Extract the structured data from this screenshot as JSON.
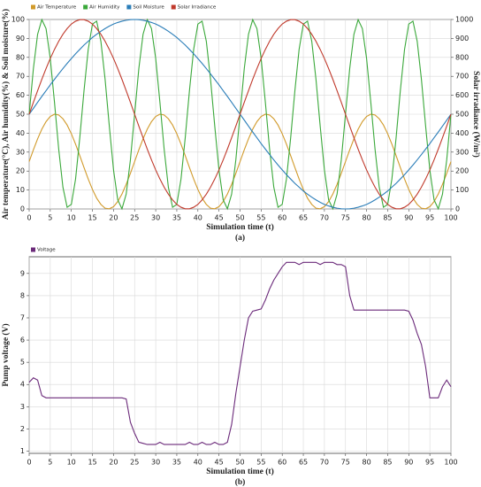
{
  "chart_data": [
    {
      "type": "line",
      "panel_label": "(a)",
      "x_label": "Simulation time (t)",
      "y_label": "Air temperature(°C), Air humidity(%) & Soil moisture(%)",
      "y2_label": "Solar irradiance (W/m²)",
      "legend": "top-left",
      "grid": true,
      "xlim": [
        0,
        100
      ],
      "xticks": [
        0,
        5,
        10,
        15,
        20,
        25,
        30,
        35,
        40,
        45,
        50,
        55,
        60,
        65,
        70,
        75,
        80,
        85,
        90,
        95,
        100
      ],
      "ylim": [
        0,
        100
      ],
      "yticks": [
        0,
        10,
        20,
        30,
        40,
        50,
        60,
        70,
        80,
        90,
        100
      ],
      "y2lim": [
        0,
        1000
      ],
      "y2ticks": [
        0,
        100,
        200,
        300,
        400,
        500,
        600,
        700,
        800,
        900,
        1000
      ],
      "x": [
        0,
        1,
        2,
        3,
        4,
        5,
        6,
        7,
        8,
        9,
        10,
        11,
        12,
        13,
        14,
        15,
        16,
        17,
        18,
        19,
        20,
        21,
        22,
        23,
        24,
        25,
        26,
        27,
        28,
        29,
        30,
        31,
        32,
        33,
        34,
        35,
        36,
        37,
        38,
        39,
        40,
        41,
        42,
        43,
        44,
        45,
        46,
        47,
        48,
        49,
        50,
        51,
        52,
        53,
        54,
        55,
        56,
        57,
        58,
        59,
        60,
        61,
        62,
        63,
        64,
        65,
        66,
        67,
        68,
        69,
        70,
        71,
        72,
        73,
        74,
        75,
        76,
        77,
        78,
        79,
        80,
        81,
        82,
        83,
        84,
        85,
        86,
        87,
        88,
        89,
        90,
        91,
        92,
        93,
        94,
        95,
        96,
        97,
        98,
        99,
        100
      ],
      "series": [
        {
          "name": "Air Temperature",
          "color": "#d19a2a",
          "values": [
            25,
            31.2,
            37.0,
            42.1,
            46.1,
            48.8,
            50.0,
            49.6,
            47.6,
            44.3,
            39.7,
            34.2,
            28.1,
            21.9,
            15.8,
            10.3,
            5.7,
            2.4,
            0.4,
            0.1,
            1.2,
            3.9,
            7.9,
            13.0,
            18.8,
            25,
            31.2,
            37.0,
            42.1,
            46.1,
            48.8,
            50.0,
            49.6,
            47.6,
            44.3,
            39.7,
            34.2,
            28.1,
            21.9,
            15.8,
            10.3,
            5.7,
            2.4,
            0.4,
            0.1,
            1.2,
            3.9,
            7.9,
            13.0,
            18.8,
            25,
            31.2,
            37.0,
            42.1,
            46.1,
            48.8,
            50.0,
            49.6,
            47.6,
            44.3,
            39.7,
            34.2,
            28.1,
            21.9,
            15.8,
            10.3,
            5.7,
            2.4,
            0.4,
            0.1,
            1.2,
            3.9,
            7.9,
            13.0,
            18.8,
            25,
            31.2,
            37.0,
            42.1,
            46.1,
            48.8,
            50.0,
            49.6,
            47.6,
            44.3,
            39.7,
            34.2,
            28.1,
            21.9,
            15.8,
            10.3,
            5.7,
            2.4,
            0.4,
            0.1,
            1.2,
            3.9,
            7.9,
            13.0,
            18.8,
            25
          ]
        },
        {
          "name": "Air Humidity",
          "color": "#3aa83a",
          "values": [
            50,
            74.1,
            92.2,
            99.9,
            95.2,
            79.4,
            56.3,
            31.6,
            11.5,
            0.9,
            2.4,
            15.8,
            37.6,
            62.4,
            84.2,
            97.6,
            99.1,
            88.5,
            68.4,
            43.7,
            20.6,
            4.8,
            0.1,
            7.8,
            25.9,
            50,
            74.1,
            92.2,
            99.9,
            95.2,
            79.4,
            56.3,
            31.6,
            11.5,
            0.9,
            2.4,
            15.8,
            37.6,
            62.4,
            84.2,
            97.6,
            99.1,
            88.5,
            68.4,
            43.7,
            20.6,
            4.8,
            0.1,
            7.8,
            25.9,
            50,
            74.1,
            92.2,
            99.9,
            95.2,
            79.4,
            56.3,
            31.6,
            11.5,
            0.9,
            2.4,
            15.8,
            37.6,
            62.4,
            84.2,
            97.6,
            99.1,
            88.5,
            68.4,
            43.7,
            20.6,
            4.8,
            0.1,
            7.8,
            25.9,
            50,
            74.1,
            92.2,
            99.9,
            95.2,
            79.4,
            56.3,
            31.6,
            11.5,
            0.9,
            2.4,
            15.8,
            37.6,
            62.4,
            84.2,
            97.6,
            99.1,
            88.5,
            68.4,
            43.7,
            20.6,
            4.8,
            0.1,
            7.8,
            25.9,
            50
          ]
        },
        {
          "name": "Soil Moisture",
          "color": "#2a7db8",
          "values": [
            50,
            53.1,
            56.3,
            59.4,
            62.4,
            65.5,
            68.4,
            71.3,
            74.1,
            76.8,
            79.4,
            81.9,
            84.2,
            86.5,
            88.5,
            90.5,
            92.2,
            93.8,
            95.2,
            96.5,
            97.6,
            98.4,
            99.1,
            99.6,
            99.9,
            100,
            99.9,
            99.6,
            99.1,
            98.4,
            97.6,
            96.5,
            95.2,
            93.8,
            92.2,
            90.5,
            88.5,
            86.5,
            84.2,
            81.9,
            79.4,
            76.8,
            74.1,
            71.3,
            68.4,
            65.5,
            62.4,
            59.4,
            56.3,
            53.1,
            50,
            46.9,
            43.7,
            40.6,
            37.6,
            34.5,
            31.6,
            28.7,
            25.9,
            23.2,
            20.6,
            18.1,
            15.8,
            13.5,
            11.5,
            9.5,
            7.8,
            6.2,
            4.8,
            3.5,
            2.4,
            1.6,
            0.9,
            0.4,
            0.1,
            0,
            0.1,
            0.4,
            0.9,
            1.6,
            2.4,
            3.5,
            4.8,
            6.2,
            7.8,
            9.5,
            11.5,
            13.5,
            15.8,
            18.1,
            20.6,
            23.2,
            25.9,
            28.7,
            31.6,
            34.5,
            37.6,
            40.6,
            43.7,
            46.9,
            50
          ]
        },
        {
          "name": "Solar Irradiance",
          "color": "#c0392b",
          "axis": "y2",
          "values": [
            500,
            563,
            624,
            684,
            741,
            794,
            842,
            885,
            922,
            952,
            976,
            991,
            999,
            999,
            991,
            976,
            952,
            922,
            885,
            842,
            794,
            741,
            684,
            624,
            563,
            500,
            437,
            376,
            316,
            259,
            206,
            158,
            115,
            78,
            48,
            24,
            9,
            1,
            1,
            9,
            24,
            48,
            78,
            115,
            158,
            206,
            259,
            316,
            376,
            437,
            500,
            563,
            624,
            684,
            741,
            794,
            842,
            885,
            922,
            952,
            976,
            991,
            999,
            999,
            991,
            976,
            952,
            922,
            885,
            842,
            794,
            741,
            684,
            624,
            563,
            500,
            437,
            376,
            316,
            259,
            206,
            158,
            115,
            78,
            48,
            24,
            9,
            1,
            1,
            9,
            24,
            48,
            78,
            115,
            158,
            206,
            259,
            316,
            376,
            437,
            500
          ]
        }
      ]
    },
    {
      "type": "line",
      "panel_label": "(b)",
      "x_label": "Simulation time (t)",
      "y_label": "Pump voltage (V)",
      "legend": "top-left",
      "grid": true,
      "xlim": [
        0,
        100
      ],
      "xticks": [
        0,
        5,
        10,
        15,
        20,
        25,
        30,
        35,
        40,
        45,
        50,
        55,
        60,
        65,
        70,
        75,
        80,
        85,
        90,
        95,
        100
      ],
      "ylim": [
        0.9,
        9.75
      ],
      "yticks": [
        1,
        2,
        3,
        4,
        5,
        6,
        7,
        8,
        9
      ],
      "x": [
        0,
        1,
        2,
        3,
        4,
        5,
        6,
        7,
        8,
        9,
        10,
        11,
        12,
        13,
        14,
        15,
        16,
        17,
        18,
        19,
        20,
        21,
        22,
        23,
        24,
        25,
        26,
        27,
        28,
        29,
        30,
        31,
        32,
        33,
        34,
        35,
        36,
        37,
        38,
        39,
        40,
        41,
        42,
        43,
        44,
        45,
        46,
        47,
        48,
        49,
        50,
        51,
        52,
        53,
        54,
        55,
        56,
        57,
        58,
        59,
        60,
        61,
        62,
        63,
        64,
        65,
        66,
        67,
        68,
        69,
        70,
        71,
        72,
        73,
        74,
        75,
        76,
        77,
        78,
        79,
        80,
        81,
        82,
        83,
        84,
        85,
        86,
        87,
        88,
        89,
        90,
        91,
        92,
        93,
        94,
        95,
        96,
        97,
        98,
        99,
        100
      ],
      "series": [
        {
          "name": "Voltage",
          "color": "#6b2a7a",
          "values": [
            4.1,
            4.3,
            4.2,
            3.5,
            3.4,
            3.4,
            3.4,
            3.4,
            3.4,
            3.4,
            3.4,
            3.4,
            3.4,
            3.4,
            3.4,
            3.4,
            3.4,
            3.4,
            3.4,
            3.4,
            3.4,
            3.4,
            3.4,
            3.35,
            2.3,
            1.8,
            1.4,
            1.35,
            1.3,
            1.3,
            1.3,
            1.4,
            1.3,
            1.3,
            1.3,
            1.3,
            1.3,
            1.3,
            1.4,
            1.3,
            1.3,
            1.4,
            1.3,
            1.3,
            1.4,
            1.3,
            1.3,
            1.4,
            2.2,
            3.6,
            4.8,
            6.0,
            7.0,
            7.3,
            7.35,
            7.4,
            7.8,
            8.3,
            8.7,
            9.0,
            9.3,
            9.5,
            9.5,
            9.5,
            9.4,
            9.5,
            9.5,
            9.5,
            9.5,
            9.4,
            9.5,
            9.5,
            9.5,
            9.4,
            9.4,
            9.3,
            8.0,
            7.35,
            7.35,
            7.35,
            7.35,
            7.35,
            7.35,
            7.35,
            7.35,
            7.35,
            7.35,
            7.35,
            7.35,
            7.35,
            7.3,
            6.9,
            6.3,
            5.8,
            4.8,
            3.4,
            3.4,
            3.4,
            3.9,
            4.2,
            3.9
          ]
        }
      ]
    }
  ]
}
